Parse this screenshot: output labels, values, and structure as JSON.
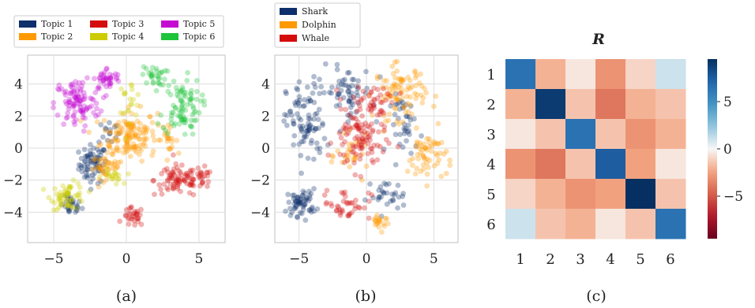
{
  "panel_labels": [
    "(a)",
    "(b)",
    "(c)"
  ],
  "chart_data": [
    {
      "type": "scatter",
      "legend": "top",
      "grid": true,
      "xlim": [
        -6.8,
        6.8
      ],
      "ylim": [
        -5.9,
        5.8
      ],
      "xticks": [
        -5,
        0,
        5
      ],
      "yticks": [
        -4,
        -2,
        0,
        2,
        4
      ],
      "xtick_labels": [
        "−5",
        "0",
        "5"
      ],
      "ytick_labels": [
        "−4",
        "−2",
        "0",
        "2",
        "4"
      ],
      "series": [
        {
          "name": "Topic 1",
          "color": "#0d2f6b",
          "clusters": [
            [
              -2.3,
              -1.0,
              0.8,
              1.0,
              70
            ],
            [
              -3.8,
              -3.6,
              0.6,
              0.5,
              30
            ],
            [
              -1.2,
              1.0,
              0.6,
              0.7,
              15
            ]
          ]
        },
        {
          "name": "Topic 2",
          "color": "#ff9900",
          "clusters": [
            [
              0.2,
              0.8,
              1.6,
              1.3,
              140
            ],
            [
              -1.4,
              -1.2,
              0.8,
              0.6,
              40
            ],
            [
              2.8,
              0.6,
              0.6,
              0.6,
              20
            ]
          ]
        },
        {
          "name": "Topic 3",
          "color": "#d40d0d",
          "clusters": [
            [
              3.6,
              -2.0,
              1.4,
              0.8,
              80
            ],
            [
              0.5,
              -4.3,
              0.6,
              0.5,
              30
            ],
            [
              5.3,
              -2.0,
              0.5,
              0.6,
              20
            ]
          ]
        },
        {
          "name": "Topic 4",
          "color": "#cccc00",
          "clusters": [
            [
              -4.0,
              -3.0,
              1.0,
              0.7,
              60
            ],
            [
              0.2,
              3.0,
              0.7,
              1.0,
              20
            ],
            [
              -1.0,
              -1.8,
              0.6,
              0.4,
              20
            ]
          ]
        },
        {
          "name": "Topic 5",
          "color": "#c50ad2",
          "clusters": [
            [
              -3.4,
              2.8,
              1.3,
              1.3,
              100
            ],
            [
              -1.3,
              4.3,
              0.8,
              0.6,
              40
            ]
          ]
        },
        {
          "name": "Topic 6",
          "color": "#1ec43a",
          "clusters": [
            [
              3.8,
              2.6,
              1.1,
              1.5,
              90
            ],
            [
              1.9,
              4.5,
              0.7,
              0.5,
              30
            ]
          ]
        }
      ]
    },
    {
      "type": "scatter",
      "legend": "top-left",
      "grid": true,
      "xlim": [
        -6.8,
        6.8
      ],
      "ylim": [
        -5.9,
        5.8
      ],
      "xticks": [
        -5,
        0,
        5
      ],
      "yticks": [
        -4,
        -2,
        0,
        2,
        4
      ],
      "xtick_labels": [
        "−5",
        "0",
        "5"
      ],
      "ytick_labels": [
        "−4",
        "−2",
        "0",
        "2",
        "4"
      ],
      "series": [
        {
          "name": "Shark",
          "color": "#0d2f6b",
          "clusters": [
            [
              -4.5,
              1.5,
              1.2,
              2.3,
              90
            ],
            [
              -4.8,
              -3.4,
              0.9,
              0.7,
              60
            ],
            [
              -1.5,
              3.5,
              1.6,
              1.3,
              60
            ],
            [
              1.5,
              -3.0,
              1.2,
              0.8,
              30
            ],
            [
              3.0,
              1.5,
              1.0,
              1.5,
              40
            ]
          ]
        },
        {
          "name": "Dolphin",
          "color": "#ff9900",
          "clusters": [
            [
              2.5,
              3.5,
              1.6,
              1.4,
              90
            ],
            [
              4.5,
              -0.5,
              1.2,
              1.3,
              60
            ],
            [
              1.0,
              -4.5,
              0.6,
              0.5,
              20
            ],
            [
              -1.0,
              -0.5,
              1.0,
              1.0,
              30
            ]
          ]
        },
        {
          "name": "Whale",
          "color": "#d40d0d",
          "clusters": [
            [
              -0.5,
              0.5,
              1.6,
              1.7,
              100
            ],
            [
              0.5,
              3.0,
              1.5,
              0.8,
              40
            ],
            [
              -1.5,
              -3.5,
              1.5,
              0.8,
              40
            ]
          ]
        }
      ]
    },
    {
      "type": "heatmap",
      "title": "R",
      "row_labels": [
        "1",
        "2",
        "3",
        "4",
        "5",
        "6"
      ],
      "col_labels": [
        "1",
        "2",
        "3",
        "4",
        "5",
        "6"
      ],
      "values": [
        [
          6.5,
          -2.0,
          -0.5,
          -3.0,
          -1.0,
          1.0
        ],
        [
          -2.0,
          9.0,
          -1.5,
          -4.0,
          -2.0,
          -1.5
        ],
        [
          -0.5,
          -1.5,
          6.5,
          -1.5,
          -3.0,
          -2.0
        ],
        [
          -3.0,
          -4.0,
          -1.5,
          7.5,
          -2.5,
          -0.5
        ],
        [
          -1.0,
          -2.0,
          -3.0,
          -2.5,
          9.5,
          -1.5
        ],
        [
          1.0,
          -1.5,
          -2.0,
          -0.5,
          -1.5,
          6.5
        ]
      ],
      "colorbar": {
        "range": [
          -9.5,
          9.5
        ],
        "ticks": [
          5,
          0,
          -5
        ],
        "tick_labels": [
          "5",
          "0",
          "−5"
        ],
        "colormap": "RdBu"
      }
    }
  ]
}
